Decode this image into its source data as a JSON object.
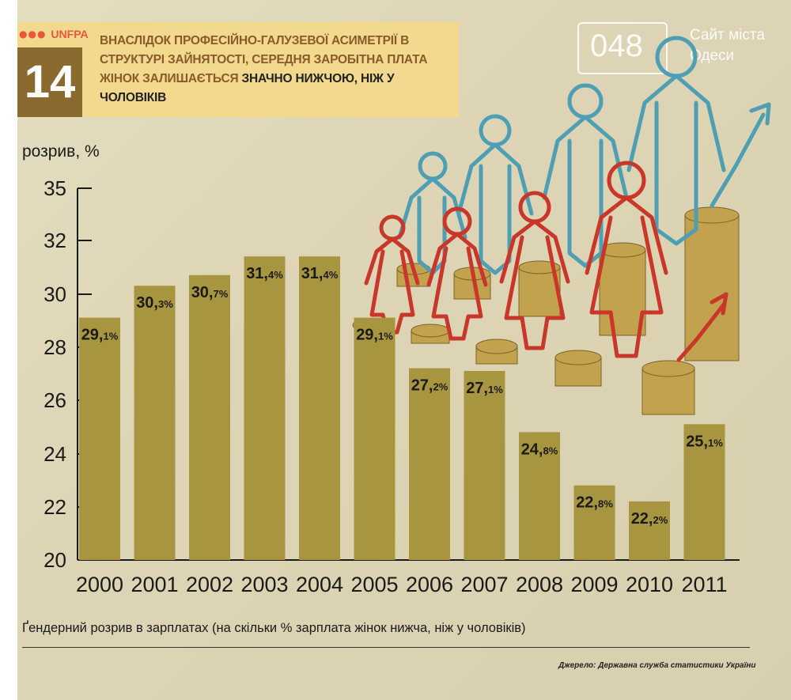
{
  "header": {
    "logo_text": "UNFPA",
    "figure_number": "14",
    "headline_part1": "ВНАСЛІДОК ПРОФЕСІЙНО-ГАЛУЗЕВОЇ АСИМЕТРІЇ В СТРУКТУРІ ЗАЙНЯТОСТІ, СЕРЕДНЯ ЗАРОБІТНА ПЛАТА ЖІНОК ЗАЛИШАЄТЬСЯ ",
    "headline_part2": "ЗНАЧНО НИЖЧОЮ, НІЖ У ЧОЛОВІКІВ"
  },
  "watermark": {
    "number": "048",
    "text": "Сайт міста Одеси"
  },
  "footer": {
    "caption": "Ґендерний розрив в зарплатах (на скільки % зарплата жінок нижча, ніж у чоловіків)",
    "source": "Джерело: Державна служба статистики України"
  },
  "colors": {
    "bar": "#a89540",
    "men_outline": "#4e9fb4",
    "women_outline": "#c9362a",
    "coin": "#c2a24e"
  },
  "chart_data": {
    "type": "bar",
    "ylabel": "розрив, %",
    "xlabel": "",
    "categories": [
      "2000",
      "2001",
      "2002",
      "2003",
      "2004",
      "2005",
      "2006",
      "2007",
      "2008",
      "2009",
      "2010",
      "2011"
    ],
    "values": [
      29.1,
      30.3,
      30.7,
      31.4,
      31.4,
      29.1,
      27.2,
      27.1,
      24.8,
      22.8,
      22.2,
      25.1
    ],
    "value_labels": [
      {
        "int": "29,",
        "dec": "1%"
      },
      {
        "int": "30,",
        "dec": "3%"
      },
      {
        "int": "30,",
        "dec": "7%"
      },
      {
        "int": "31,",
        "dec": "4%"
      },
      {
        "int": "31,",
        "dec": "4%"
      },
      {
        "int": "29,",
        "dec": "1%"
      },
      {
        "int": "27,",
        "dec": "2%"
      },
      {
        "int": "27,",
        "dec": "1%"
      },
      {
        "int": "24,",
        "dec": "8%"
      },
      {
        "int": "22,",
        "dec": "8%"
      },
      {
        "int": "22,",
        "dec": "2%"
      },
      {
        "int": "25,",
        "dec": "1%"
      }
    ],
    "yticks": [
      20,
      22,
      24,
      26,
      28,
      30,
      32,
      35
    ],
    "ylim": [
      20,
      35
    ],
    "grid": false,
    "legend": "none"
  }
}
